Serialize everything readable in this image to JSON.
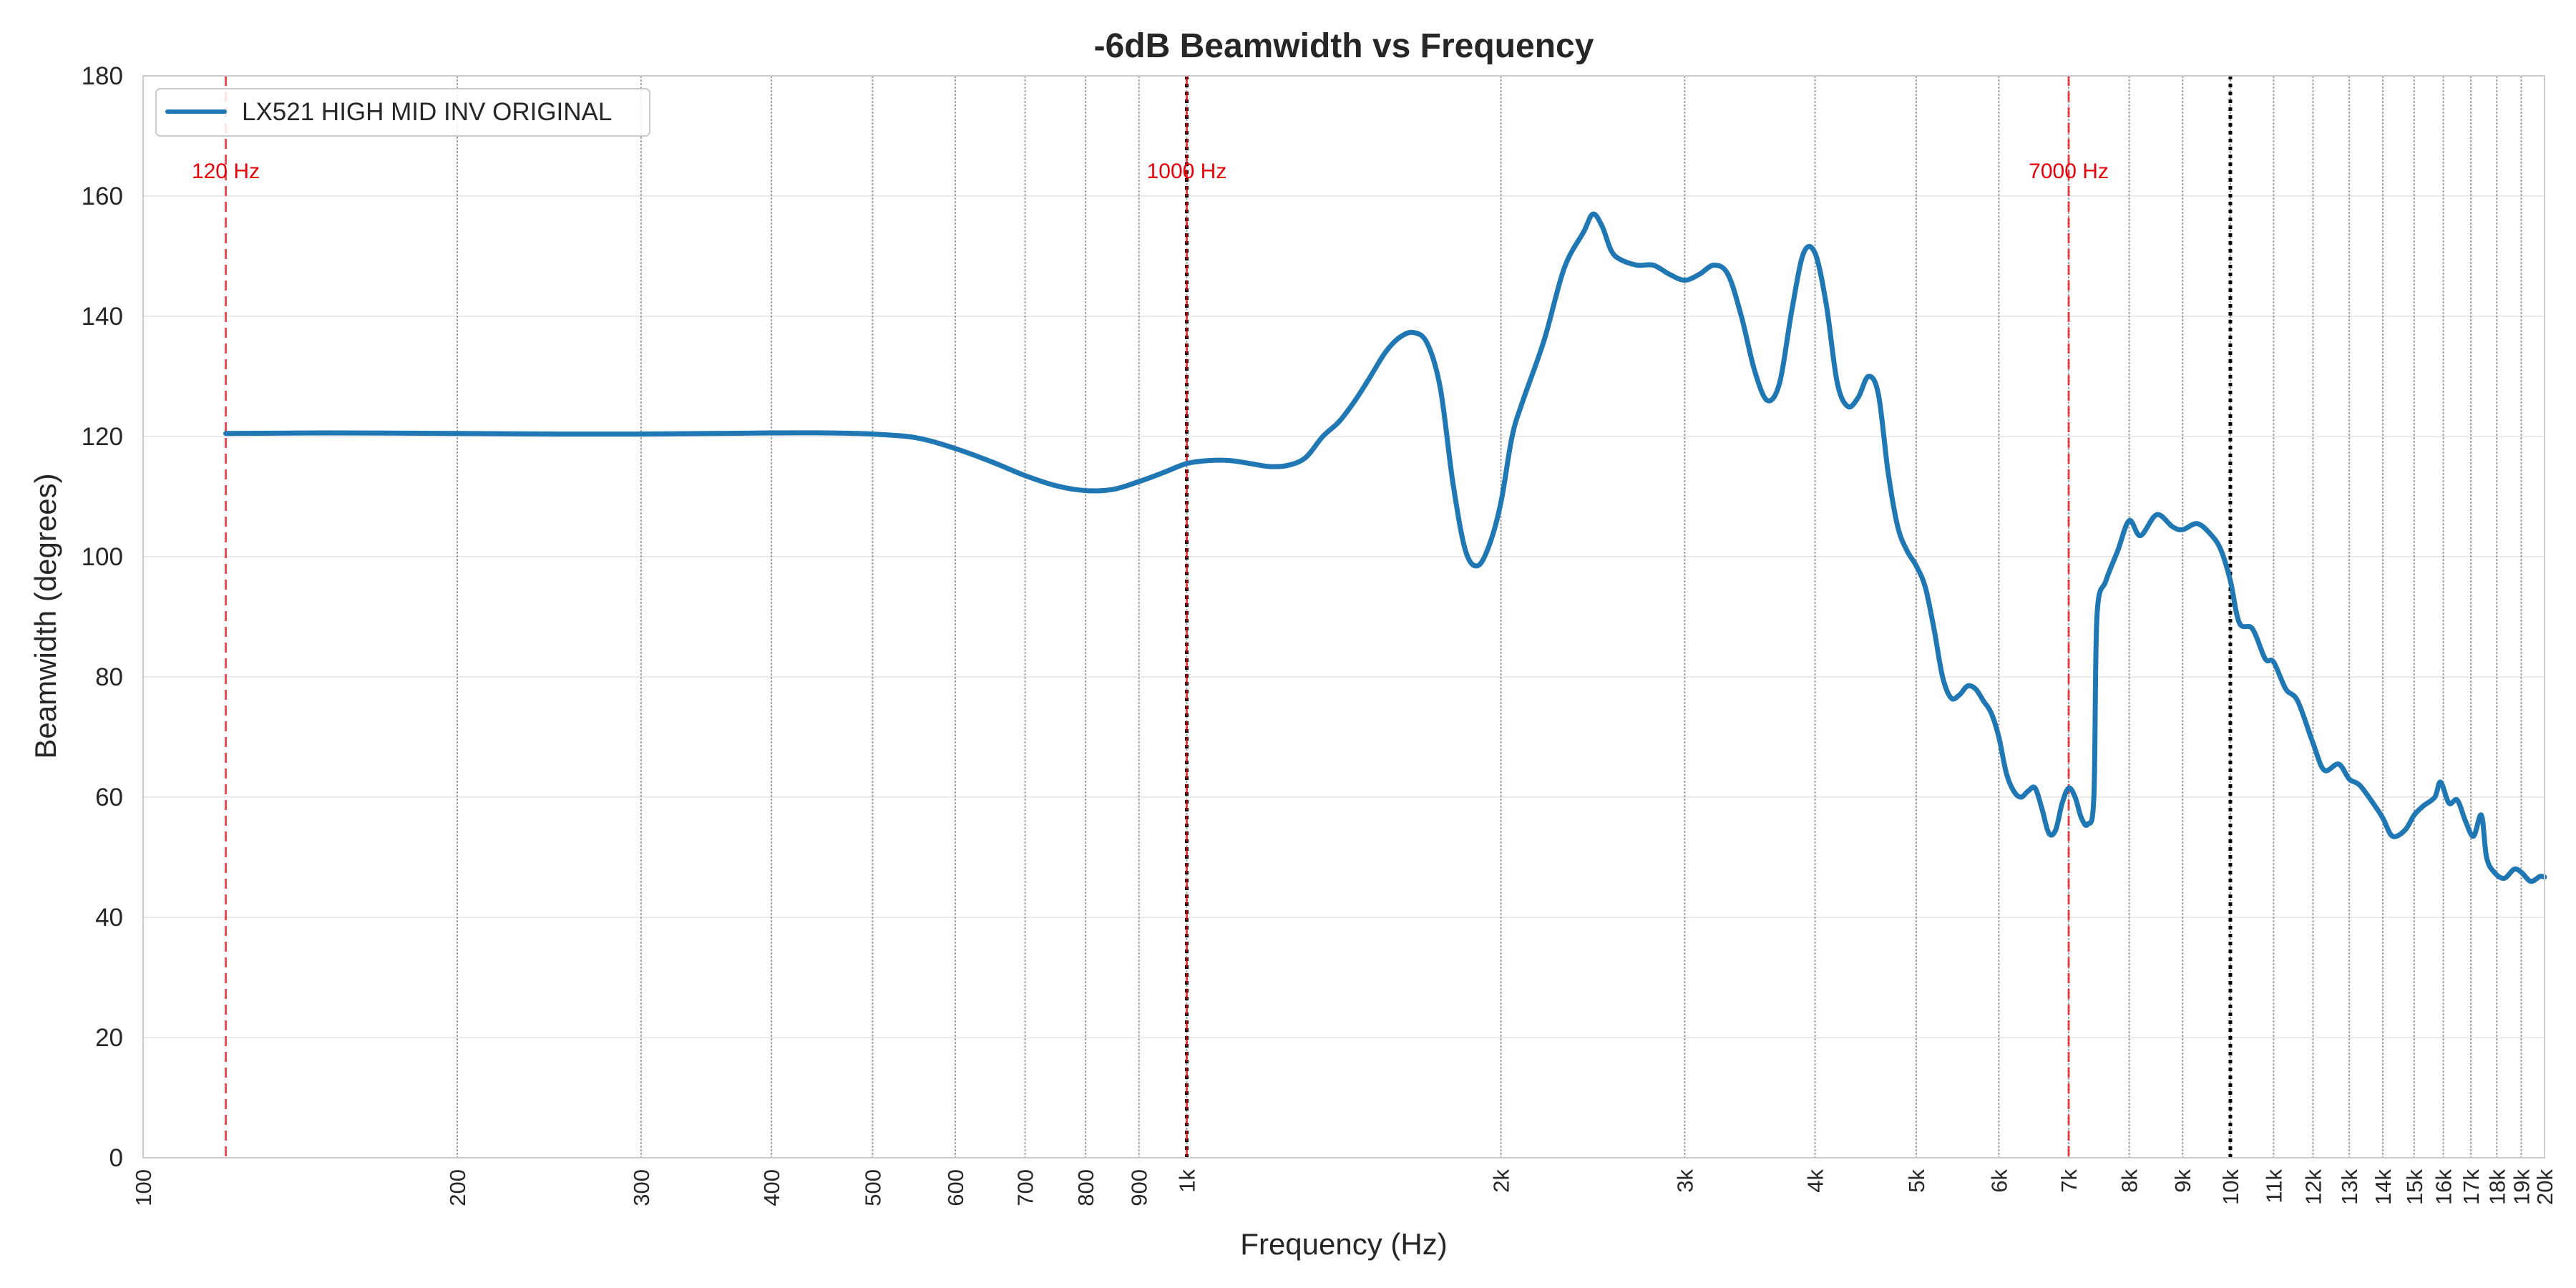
{
  "chart_data": {
    "type": "line",
    "title": "-6dB Beamwidth vs Frequency",
    "xlabel": "Frequency (Hz)",
    "ylabel": "Beamwidth (degrees)",
    "x_scale": "log",
    "xlim": [
      100,
      20000
    ],
    "ylim": [
      0,
      180
    ],
    "yticks": [
      0,
      20,
      40,
      60,
      80,
      100,
      120,
      140,
      160,
      180
    ],
    "xticks": [
      {
        "value": 100,
        "label": "100"
      },
      {
        "value": 200,
        "label": "200"
      },
      {
        "value": 300,
        "label": "300"
      },
      {
        "value": 400,
        "label": "400"
      },
      {
        "value": 500,
        "label": "500"
      },
      {
        "value": 600,
        "label": "600"
      },
      {
        "value": 700,
        "label": "700"
      },
      {
        "value": 800,
        "label": "800"
      },
      {
        "value": 900,
        "label": "900"
      },
      {
        "value": 1000,
        "label": "1k"
      },
      {
        "value": 2000,
        "label": "2k"
      },
      {
        "value": 3000,
        "label": "3k"
      },
      {
        "value": 4000,
        "label": "4k"
      },
      {
        "value": 5000,
        "label": "5k"
      },
      {
        "value": 6000,
        "label": "6k"
      },
      {
        "value": 7000,
        "label": "7k"
      },
      {
        "value": 8000,
        "label": "8k"
      },
      {
        "value": 9000,
        "label": "9k"
      },
      {
        "value": 10000,
        "label": "10k"
      },
      {
        "value": 11000,
        "label": "11k"
      },
      {
        "value": 12000,
        "label": "12k"
      },
      {
        "value": 13000,
        "label": "13k"
      },
      {
        "value": 14000,
        "label": "14k"
      },
      {
        "value": 15000,
        "label": "15k"
      },
      {
        "value": 16000,
        "label": "16k"
      },
      {
        "value": 17000,
        "label": "17k"
      },
      {
        "value": 18000,
        "label": "18k"
      },
      {
        "value": 19000,
        "label": "19k"
      },
      {
        "value": 20000,
        "label": "20k"
      }
    ],
    "grid": true,
    "legend_position": "top-left",
    "reference_lines": [
      {
        "x": 120,
        "label": "120 Hz",
        "color": "#e8000b",
        "style": "dashed"
      },
      {
        "x": 1000,
        "label": "1000 Hz",
        "color": "#e8000b",
        "style": "dashed"
      },
      {
        "x": 7000,
        "label": "7000 Hz",
        "color": "#e8000b",
        "style": "dashed"
      }
    ],
    "marker_lines": [
      {
        "x": 1000,
        "color": "#000000",
        "style": "dotted"
      },
      {
        "x": 10000,
        "color": "#000000",
        "style": "dotted"
      }
    ],
    "series": [
      {
        "name": "LX521 HIGH MID INV ORIGINAL",
        "color": "#1f77b4",
        "points": [
          [
            120,
            120.5
          ],
          [
            150,
            120.6
          ],
          [
            200,
            120.5
          ],
          [
            250,
            120.4
          ],
          [
            300,
            120.4
          ],
          [
            350,
            120.5
          ],
          [
            400,
            120.6
          ],
          [
            450,
            120.6
          ],
          [
            500,
            120.4
          ],
          [
            550,
            119.8
          ],
          [
            600,
            118
          ],
          [
            650,
            115.8
          ],
          [
            700,
            113.5
          ],
          [
            750,
            111.8
          ],
          [
            800,
            111
          ],
          [
            850,
            111.2
          ],
          [
            900,
            112.5
          ],
          [
            950,
            114
          ],
          [
            1000,
            115.5
          ],
          [
            1050,
            116
          ],
          [
            1100,
            116
          ],
          [
            1150,
            115.5
          ],
          [
            1200,
            115
          ],
          [
            1250,
            115.2
          ],
          [
            1300,
            116.5
          ],
          [
            1350,
            120
          ],
          [
            1400,
            122.5
          ],
          [
            1450,
            126
          ],
          [
            1500,
            130
          ],
          [
            1550,
            134
          ],
          [
            1600,
            136.5
          ],
          [
            1650,
            137.3
          ],
          [
            1700,
            135.5
          ],
          [
            1750,
            128
          ],
          [
            1800,
            112
          ],
          [
            1850,
            101
          ],
          [
            1900,
            98.5
          ],
          [
            1950,
            102
          ],
          [
            2000,
            109
          ],
          [
            2050,
            120
          ],
          [
            2100,
            126
          ],
          [
            2200,
            136
          ],
          [
            2300,
            148
          ],
          [
            2400,
            154
          ],
          [
            2450,
            157
          ],
          [
            2500,
            155
          ],
          [
            2550,
            151
          ],
          [
            2600,
            149.5
          ],
          [
            2700,
            148.5
          ],
          [
            2800,
            148.5
          ],
          [
            2900,
            147
          ],
          [
            3000,
            146
          ],
          [
            3100,
            147
          ],
          [
            3200,
            148.5
          ],
          [
            3300,
            147
          ],
          [
            3400,
            140
          ],
          [
            3500,
            131
          ],
          [
            3600,
            126
          ],
          [
            3700,
            129
          ],
          [
            3800,
            141
          ],
          [
            3900,
            150.5
          ],
          [
            4000,
            150.5
          ],
          [
            4100,
            142
          ],
          [
            4200,
            129
          ],
          [
            4300,
            125
          ],
          [
            4400,
            126.5
          ],
          [
            4500,
            130
          ],
          [
            4600,
            127
          ],
          [
            4700,
            114
          ],
          [
            4800,
            105
          ],
          [
            4900,
            101
          ],
          [
            5000,
            98.5
          ],
          [
            5100,
            95
          ],
          [
            5200,
            88
          ],
          [
            5300,
            80
          ],
          [
            5400,
            76.5
          ],
          [
            5500,
            77
          ],
          [
            5600,
            78.5
          ],
          [
            5700,
            78
          ],
          [
            5800,
            76
          ],
          [
            5900,
            74
          ],
          [
            6000,
            70
          ],
          [
            6100,
            64
          ],
          [
            6200,
            61
          ],
          [
            6300,
            60
          ],
          [
            6400,
            61
          ],
          [
            6500,
            61.5
          ],
          [
            6600,
            58
          ],
          [
            6700,
            54
          ],
          [
            6800,
            54.5
          ],
          [
            6900,
            59
          ],
          [
            7000,
            61.5
          ],
          [
            7100,
            60
          ],
          [
            7200,
            56.5
          ],
          [
            7300,
            55.5
          ],
          [
            7400,
            60
          ],
          [
            7450,
            90
          ],
          [
            7600,
            96
          ],
          [
            7800,
            101
          ],
          [
            8000,
            106
          ],
          [
            8200,
            103.5
          ],
          [
            8500,
            107
          ],
          [
            8800,
            105
          ],
          [
            9000,
            104.5
          ],
          [
            9300,
            105.5
          ],
          [
            9600,
            103.5
          ],
          [
            9800,
            101
          ],
          [
            10000,
            96
          ],
          [
            10200,
            89
          ],
          [
            10500,
            88
          ],
          [
            10800,
            83
          ],
          [
            11000,
            82.5
          ],
          [
            11300,
            78
          ],
          [
            11600,
            76
          ],
          [
            12000,
            69
          ],
          [
            12300,
            64.5
          ],
          [
            12700,
            65.5
          ],
          [
            13000,
            63
          ],
          [
            13300,
            62
          ],
          [
            13700,
            59
          ],
          [
            14000,
            56.5
          ],
          [
            14300,
            53.5
          ],
          [
            14700,
            54.5
          ],
          [
            15000,
            57
          ],
          [
            15300,
            58.5
          ],
          [
            15700,
            60
          ],
          [
            15900,
            62.5
          ],
          [
            16200,
            59
          ],
          [
            16500,
            59.5
          ],
          [
            16800,
            56
          ],
          [
            17100,
            53.5
          ],
          [
            17400,
            57
          ],
          [
            17600,
            50
          ],
          [
            17900,
            47.5
          ],
          [
            18300,
            46.5
          ],
          [
            18700,
            48
          ],
          [
            19000,
            47.5
          ],
          [
            19400,
            46
          ],
          [
            19800,
            46.8
          ],
          [
            20000,
            46.7
          ]
        ]
      }
    ]
  }
}
